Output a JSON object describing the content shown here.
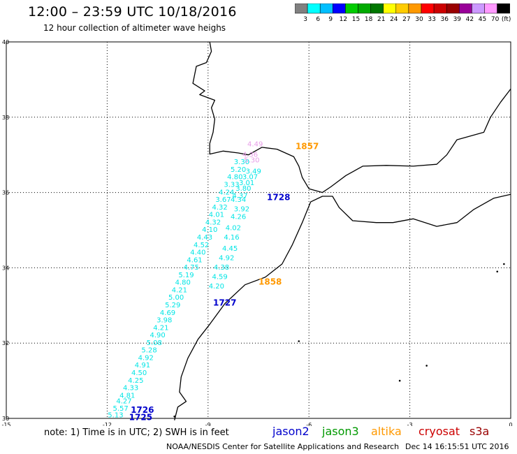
{
  "header": {
    "title": "12:00 – 23:59 UTC 10/18/2016",
    "subtitle": "12 hour collection of altimeter wave heighs"
  },
  "legend": {
    "colors": [
      "#808080",
      "#00ffff",
      "#00bfff",
      "#0000ff",
      "#00cc00",
      "#00aa00",
      "#007700",
      "#ffff00",
      "#ffcc00",
      "#ff9900",
      "#ff0000",
      "#cc0000",
      "#990000",
      "#990099",
      "#cc99ff",
      "#ff99ff",
      "#000000"
    ],
    "labels": [
      "3",
      "6",
      "9",
      "12",
      "15",
      "18",
      "21",
      "24",
      "27",
      "30",
      "33",
      "36",
      "39",
      "42",
      "45",
      "70",
      "(ft)"
    ]
  },
  "map": {
    "lon_ticks": [
      "-15",
      "-12",
      "-9",
      "-6",
      "-3",
      "0"
    ],
    "lat_ticks": [
      "40",
      "38",
      "36",
      "34",
      "32",
      "30"
    ],
    "lon_values": [
      -15,
      -12,
      -9,
      -6,
      -3,
      0
    ],
    "lat_values": [
      40,
      38,
      36,
      34,
      32,
      30
    ],
    "track": {
      "color": "#00e5e5",
      "points": [
        {
          "lon": -11.75,
          "lat": 30.03,
          "v": "5.13"
        },
        {
          "lon": -11.6,
          "lat": 30.2,
          "v": "5.57"
        },
        {
          "lon": -11.5,
          "lat": 30.4,
          "v": "4.27"
        },
        {
          "lon": -11.4,
          "lat": 30.55,
          "v": "4.81"
        },
        {
          "lon": -11.3,
          "lat": 30.75,
          "v": "4.33"
        },
        {
          "lon": -11.15,
          "lat": 30.95,
          "v": "4.25"
        },
        {
          "lon": -11.05,
          "lat": 31.15,
          "v": "4.50"
        },
        {
          "lon": -10.95,
          "lat": 31.35,
          "v": "4.91"
        },
        {
          "lon": -10.85,
          "lat": 31.55,
          "v": "4.92"
        },
        {
          "lon": -10.75,
          "lat": 31.75,
          "v": "5.28"
        },
        {
          "lon": -10.6,
          "lat": 31.95,
          "v": "5.08"
        },
        {
          "lon": -10.5,
          "lat": 32.15,
          "v": "4.90"
        },
        {
          "lon": -10.4,
          "lat": 32.35,
          "v": "4.21"
        },
        {
          "lon": -10.3,
          "lat": 32.55,
          "v": "3.98"
        },
        {
          "lon": -10.2,
          "lat": 32.75,
          "v": "4.69"
        },
        {
          "lon": -10.05,
          "lat": 32.95,
          "v": "5.29"
        },
        {
          "lon": -9.95,
          "lat": 33.15,
          "v": "5.00"
        },
        {
          "lon": -9.85,
          "lat": 33.35,
          "v": "4.21"
        },
        {
          "lon": -9.75,
          "lat": 33.55,
          "v": "4.80"
        },
        {
          "lon": -9.65,
          "lat": 33.75,
          "v": "5.19"
        },
        {
          "lon": -9.5,
          "lat": 33.95,
          "v": "4.75"
        },
        {
          "lon": -9.4,
          "lat": 34.15,
          "v": "4.61"
        },
        {
          "lon": -9.3,
          "lat": 34.35,
          "v": "4.40"
        },
        {
          "lon": -9.2,
          "lat": 34.55,
          "v": "4.52"
        },
        {
          "lon": -9.1,
          "lat": 34.75,
          "v": "4.43"
        },
        {
          "lon": -8.95,
          "lat": 34.95,
          "v": "4.10"
        },
        {
          "lon": -8.85,
          "lat": 35.15,
          "v": "4.32"
        },
        {
          "lon": -8.75,
          "lat": 35.35,
          "v": "4.01"
        },
        {
          "lon": -8.65,
          "lat": 35.55,
          "v": "4.32"
        },
        {
          "lon": -8.55,
          "lat": 35.75,
          "v": "3.67"
        },
        {
          "lon": -8.45,
          "lat": 35.95,
          "v": "4.24"
        },
        {
          "lon": -8.3,
          "lat": 36.15,
          "v": "3.33"
        },
        {
          "lon": -8.2,
          "lat": 36.35,
          "v": "4.80"
        },
        {
          "lon": -8.1,
          "lat": 36.55,
          "v": "5.20"
        },
        {
          "lon": -8.0,
          "lat": 36.75,
          "v": "3.30"
        }
      ]
    },
    "track_right": {
      "color": "#00e5e5",
      "points": [
        {
          "lon": -7.65,
          "lat": 36.5,
          "v": "3.49"
        },
        {
          "lon": -7.75,
          "lat": 36.35,
          "v": "3.07"
        },
        {
          "lon": -7.85,
          "lat": 36.2,
          "v": "3.01"
        },
        {
          "lon": -7.95,
          "lat": 36.05,
          "v": "3.80"
        },
        {
          "lon": -8.05,
          "lat": 35.85,
          "v": "4.37"
        },
        {
          "lon": -8.1,
          "lat": 35.75,
          "v": "4.34"
        },
        {
          "lon": -8.0,
          "lat": 35.5,
          "v": "3.92"
        },
        {
          "lon": -8.1,
          "lat": 35.3,
          "v": "4.26"
        },
        {
          "lon": -8.25,
          "lat": 35.0,
          "v": "4.02"
        },
        {
          "lon": -8.3,
          "lat": 34.75,
          "v": "4.16"
        },
        {
          "lon": -8.35,
          "lat": 34.45,
          "v": "4.45"
        },
        {
          "lon": -8.45,
          "lat": 34.2,
          "v": "4.92"
        },
        {
          "lon": -8.6,
          "lat": 33.95,
          "v": "4.38"
        },
        {
          "lon": -8.65,
          "lat": 33.7,
          "v": "4.59"
        },
        {
          "lon": -8.75,
          "lat": 33.45,
          "v": "4.20"
        }
      ]
    },
    "track_pink": {
      "color": "#e79be7",
      "points": [
        {
          "lon": -7.6,
          "lat": 37.23,
          "v": "4.49"
        },
        {
          "lon": -7.75,
          "lat": 36.95,
          "v": "4.36"
        },
        {
          "lon": -7.7,
          "lat": 36.8,
          "v": "5.30"
        }
      ]
    },
    "track_pink_values": [
      "4.49",
      "4.36",
      "5.30"
    ],
    "time_labels": [
      {
        "text": "1857",
        "lon": -6.4,
        "lat": 37.15,
        "color": "#ff9900"
      },
      {
        "text": "1728",
        "lon": -7.25,
        "lat": 35.8,
        "color": "#0000cc"
      },
      {
        "text": "1858",
        "lon": -7.5,
        "lat": 33.55,
        "color": "#ff9900"
      },
      {
        "text": "1727",
        "lon": -8.85,
        "lat": 33.0,
        "color": "#0000cc"
      },
      {
        "text": "1726",
        "lon": -11.3,
        "lat": 30.15,
        "color": "#0000cc"
      },
      {
        "text": "1725",
        "lon": -11.35,
        "lat": 29.95,
        "color": "#0000cc"
      }
    ]
  },
  "footer": {
    "note": "note:  1) Time is in UTC;  2) SWH is in feet",
    "satellites": [
      {
        "name": "jason2",
        "color": "#0000cc"
      },
      {
        "name": "jason3",
        "color": "#009900"
      },
      {
        "name": "altika",
        "color": "#ff9900"
      },
      {
        "name": "cryosat",
        "color": "#cc0000"
      },
      {
        "name": "s3a",
        "color": "#990000"
      }
    ],
    "credit": "NOAA/NESDIS Center for Satellite Applications and Research",
    "timestamp": "Dec 14 16:15:51 UTC 2016"
  }
}
